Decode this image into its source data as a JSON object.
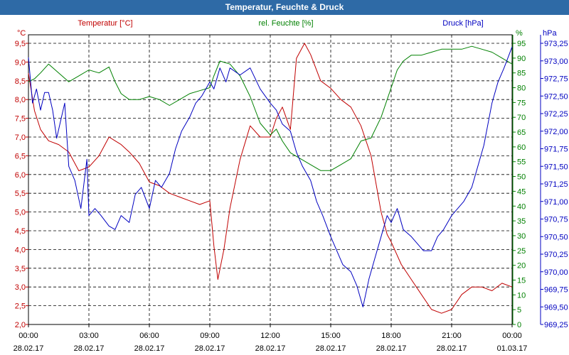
{
  "window": {
    "title": "Temperatur, Feuchte & Druck"
  },
  "colors": {
    "temp": "#c00000",
    "hum": "#008000",
    "press": "#0000c0",
    "axis": "#000000",
    "grid": "#000000"
  },
  "chart_data": {
    "type": "line",
    "title": "Temperatur, Feuchte & Druck",
    "x_ticks": [
      {
        "time": "00:00",
        "date": "28.02.17"
      },
      {
        "time": "03:00",
        "date": "28.02.17"
      },
      {
        "time": "06:00",
        "date": "28.02.17"
      },
      {
        "time": "09:00",
        "date": "28.02.17"
      },
      {
        "time": "12:00",
        "date": "28.02.17"
      },
      {
        "time": "15:00",
        "date": "28.02.17"
      },
      {
        "time": "18:00",
        "date": "28.02.17"
      },
      {
        "time": "21:00",
        "date": "28.02.17"
      },
      {
        "time": "00:00",
        "date": "01.03.17"
      }
    ],
    "x_range_hours": [
      0,
      24
    ],
    "axes": {
      "temp": {
        "unit": "°C",
        "label": "Temperatur [°C]",
        "range": [
          2.0,
          9.5
        ],
        "ticks": [
          "9,5",
          "9,0",
          "8,5",
          "8,0",
          "7,5",
          "7,0",
          "6,5",
          "6,0",
          "5,5",
          "5,0",
          "4,5",
          "4,0",
          "3,5",
          "3,0",
          "2,5",
          "2,0"
        ]
      },
      "hum": {
        "unit": "%",
        "label": "rel. Feuchte [%]",
        "range": [
          0,
          95
        ],
        "ticks": [
          "95",
          "90",
          "85",
          "80",
          "75",
          "70",
          "65",
          "60",
          "55",
          "50",
          "45",
          "40",
          "35",
          "30",
          "25",
          "20",
          "15",
          "10",
          "5",
          "0"
        ]
      },
      "press": {
        "unit": "hPa",
        "label": "Druck [hPa]",
        "range": [
          969.25,
          973.25
        ],
        "ticks": [
          "973,25",
          "973,00",
          "972,75",
          "972,50",
          "972,25",
          "972,00",
          "971,75",
          "971,50",
          "971,25",
          "971,00",
          "970,75",
          "970,50",
          "970,25",
          "970,00",
          "969,75",
          "969,50",
          "969,25"
        ]
      }
    },
    "series": [
      {
        "name": "Temperatur [°C]",
        "axis": "temp",
        "x": [
          0,
          0.3,
          0.6,
          1,
          1.5,
          2,
          2.5,
          3,
          3.5,
          4,
          4.3,
          4.6,
          5,
          5.5,
          6,
          6.5,
          7,
          7.5,
          8,
          8.5,
          9,
          9.2,
          9.4,
          9.7,
          10,
          10.5,
          11,
          11.5,
          12,
          12.3,
          12.6,
          13,
          13.3,
          13.7,
          14,
          14.5,
          15,
          15.5,
          16,
          16.5,
          17,
          17.5,
          17.8,
          18,
          18.5,
          19,
          19.5,
          20,
          20.5,
          21,
          21.5,
          22,
          22.5,
          23,
          23.5,
          24
        ],
        "values": [
          8.7,
          7.7,
          7.2,
          6.9,
          6.8,
          6.6,
          6.1,
          6.2,
          6.5,
          7.0,
          6.9,
          6.8,
          6.6,
          6.3,
          5.8,
          5.7,
          5.5,
          5.4,
          5.3,
          5.2,
          5.3,
          4.1,
          3.2,
          4.0,
          5.1,
          6.4,
          7.3,
          7.0,
          7.0,
          7.5,
          7.8,
          7.2,
          9.1,
          9.5,
          9.2,
          8.5,
          8.3,
          8.0,
          7.8,
          7.3,
          6.5,
          5.0,
          4.4,
          4.2,
          3.6,
          3.2,
          2.8,
          2.4,
          2.3,
          2.4,
          2.8,
          3.0,
          3.0,
          2.9,
          3.1,
          3.0
        ]
      },
      {
        "name": "rel. Feuchte [%]",
        "axis": "hum",
        "x": [
          0,
          0.3,
          0.6,
          1,
          1.5,
          2,
          2.5,
          3,
          3.5,
          4,
          4.3,
          4.6,
          5,
          5.5,
          6,
          6.5,
          7,
          7.5,
          8,
          8.5,
          9,
          9.2,
          9.5,
          10,
          10.5,
          11,
          11.5,
          12,
          12.3,
          12.6,
          13,
          13.5,
          14,
          14.5,
          15,
          15.5,
          16,
          16.5,
          17,
          17.5,
          18,
          18.3,
          18.6,
          19,
          19.5,
          20,
          20.5,
          21,
          21.5,
          22,
          22.5,
          23,
          23.5,
          24
        ],
        "values": [
          82,
          83,
          85,
          88,
          85,
          82,
          84,
          86,
          85,
          87,
          82,
          78,
          76,
          76,
          77,
          76,
          74,
          76,
          78,
          79,
          80,
          84,
          89,
          88,
          84,
          77,
          68,
          64,
          66,
          62,
          58,
          56,
          54,
          52,
          52,
          54,
          56,
          62,
          63,
          70,
          80,
          86,
          89,
          91,
          91,
          92,
          93,
          93,
          93,
          94,
          93,
          92,
          90,
          88
        ]
      },
      {
        "name": "Druck [hPa]",
        "axis": "press",
        "x": [
          0,
          0.2,
          0.4,
          0.6,
          0.8,
          1,
          1.2,
          1.4,
          1.6,
          1.8,
          2,
          2.3,
          2.6,
          2.9,
          3,
          3.3,
          3.6,
          4,
          4.3,
          4.6,
          5,
          5.3,
          5.6,
          6,
          6.3,
          6.6,
          7,
          7.3,
          7.6,
          8,
          8.3,
          8.6,
          9,
          9.2,
          9.5,
          9.8,
          10,
          10.5,
          11,
          11.5,
          12,
          12.3,
          12.6,
          13,
          13.3,
          13.6,
          14,
          14.3,
          14.6,
          15,
          15.3,
          15.6,
          16,
          16.3,
          16.6,
          16.9,
          17.2,
          17.5,
          17.8,
          18,
          18.3,
          18.6,
          19,
          19.3,
          19.6,
          20,
          20.3,
          20.6,
          21,
          21.3,
          21.6,
          22,
          22.3,
          22.6,
          23,
          23.3,
          23.6,
          24
        ],
        "values": [
          973.05,
          972.4,
          972.6,
          972.3,
          972.55,
          972.55,
          972.3,
          971.9,
          972.15,
          972.4,
          971.5,
          971.3,
          970.9,
          971.6,
          970.8,
          970.9,
          970.8,
          970.65,
          970.6,
          970.8,
          970.7,
          971.1,
          971.2,
          970.9,
          971.3,
          971.2,
          971.4,
          971.75,
          972.0,
          972.2,
          972.4,
          972.5,
          972.7,
          972.6,
          972.9,
          972.7,
          972.9,
          972.8,
          972.9,
          972.6,
          972.4,
          972.3,
          972.1,
          972.0,
          971.7,
          971.5,
          971.3,
          971.0,
          970.8,
          970.5,
          970.3,
          970.1,
          970.0,
          969.8,
          969.5,
          969.9,
          970.2,
          970.5,
          970.8,
          970.7,
          970.9,
          970.6,
          970.5,
          970.4,
          970.3,
          970.3,
          970.5,
          970.6,
          970.8,
          970.9,
          971.0,
          971.2,
          971.5,
          971.8,
          972.4,
          972.7,
          972.9,
          973.2
        ]
      }
    ]
  }
}
